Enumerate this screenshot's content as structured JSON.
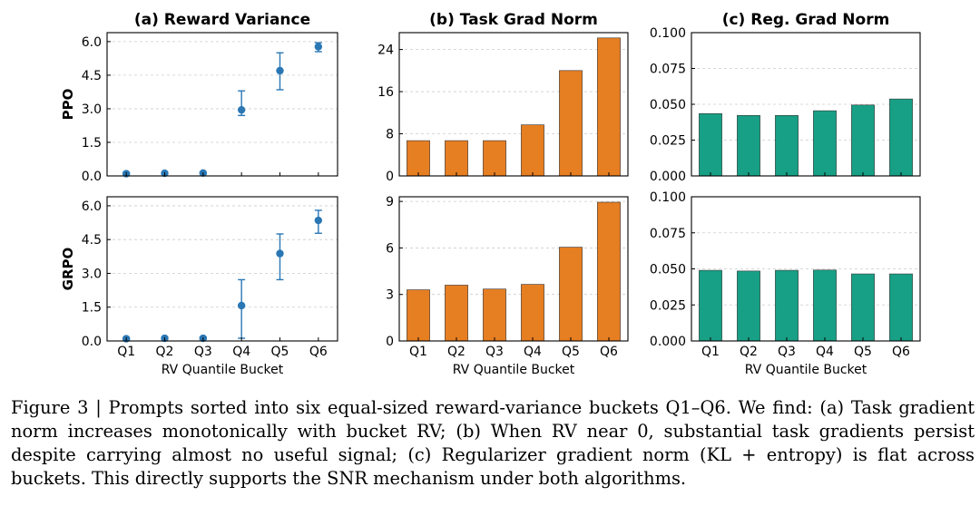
{
  "figure": {
    "row_labels": [
      "PPO",
      "GRPO"
    ],
    "colors": {
      "errorbar": "#2a77b4",
      "task_bar": "#e67e22",
      "reg_bar": "#17a085",
      "grid": "#cccccc"
    }
  },
  "chart_data": [
    {
      "type": "scatter",
      "title": "(a) Reward Variance",
      "row": "PPO",
      "xlabel": "",
      "ylabel": "PPO",
      "categories": [
        "Q1",
        "Q2",
        "Q3",
        "Q4",
        "Q5",
        "Q6"
      ],
      "values": [
        0.1,
        0.12,
        0.13,
        2.95,
        4.7,
        5.77
      ],
      "err_low": [
        0.05,
        0.08,
        0.08,
        2.7,
        3.85,
        5.55
      ],
      "err_high": [
        0.15,
        0.16,
        0.18,
        3.8,
        5.5,
        5.95
      ],
      "ylim": [
        0,
        6.4
      ],
      "yticks": [
        0.0,
        1.5,
        3.0,
        4.5,
        6.0
      ],
      "ytick_labels": [
        "0.0",
        "1.5",
        "3.0",
        "4.5",
        "6.0"
      ],
      "grid": true
    },
    {
      "type": "bar",
      "title": "(b) Task Grad Norm",
      "row": "PPO",
      "xlabel": "",
      "categories": [
        "Q1",
        "Q2",
        "Q3",
        "Q4",
        "Q5",
        "Q6"
      ],
      "values": [
        6.7,
        6.7,
        6.7,
        9.7,
        20.0,
        26.2
      ],
      "ylim": [
        0,
        27.2
      ],
      "yticks": [
        0,
        8,
        16,
        24
      ],
      "ytick_labels": [
        "0",
        "8",
        "16",
        "24"
      ],
      "grid": true
    },
    {
      "type": "bar",
      "title": "(c) Reg. Grad Norm",
      "row": "PPO",
      "xlabel": "",
      "categories": [
        "Q1",
        "Q2",
        "Q3",
        "Q4",
        "Q5",
        "Q6"
      ],
      "values": [
        0.0435,
        0.0422,
        0.0422,
        0.0455,
        0.0495,
        0.0537
      ],
      "ylim": [
        0,
        0.1
      ],
      "yticks": [
        0.0,
        0.025,
        0.05,
        0.075,
        0.1
      ],
      "ytick_labels": [
        "0.000",
        "0.025",
        "0.050",
        "0.075",
        "0.100"
      ],
      "grid": true
    },
    {
      "type": "scatter",
      "title": "",
      "row": "GRPO",
      "xlabel": "RV Quantile Bucket",
      "ylabel": "GRPO",
      "categories": [
        "Q1",
        "Q2",
        "Q3",
        "Q4",
        "Q5",
        "Q6"
      ],
      "values": [
        0.1,
        0.12,
        0.12,
        1.57,
        3.88,
        5.35
      ],
      "err_low": [
        0.05,
        0.07,
        0.07,
        0.12,
        2.72,
        4.78
      ],
      "err_high": [
        0.15,
        0.16,
        0.17,
        2.72,
        4.75,
        5.8
      ],
      "ylim": [
        0,
        6.4
      ],
      "yticks": [
        0.0,
        1.5,
        3.0,
        4.5,
        6.0
      ],
      "ytick_labels": [
        "0.0",
        "1.5",
        "3.0",
        "4.5",
        "6.0"
      ],
      "grid": true
    },
    {
      "type": "bar",
      "title": "",
      "row": "GRPO",
      "xlabel": "RV Quantile Bucket",
      "categories": [
        "Q1",
        "Q2",
        "Q3",
        "Q4",
        "Q5",
        "Q6"
      ],
      "values": [
        3.3,
        3.6,
        3.35,
        3.65,
        6.05,
        8.95
      ],
      "ylim": [
        0,
        9.3
      ],
      "yticks": [
        0,
        3,
        6,
        9
      ],
      "ytick_labels": [
        "0",
        "3",
        "6",
        "9"
      ],
      "grid": true
    },
    {
      "type": "bar",
      "title": "",
      "row": "GRPO",
      "xlabel": "RV Quantile Bucket",
      "categories": [
        "Q1",
        "Q2",
        "Q3",
        "Q4",
        "Q5",
        "Q6"
      ],
      "values": [
        0.049,
        0.0485,
        0.049,
        0.0492,
        0.0465,
        0.0465
      ],
      "ylim": [
        0,
        0.1
      ],
      "yticks": [
        0.0,
        0.025,
        0.05,
        0.075,
        0.1
      ],
      "ytick_labels": [
        "0.000",
        "0.025",
        "0.050",
        "0.075",
        "0.100"
      ],
      "grid": true
    }
  ],
  "caption": "Figure 3 | Prompts sorted into six equal-sized reward-variance buckets Q1–Q6. We find: (a) Task gradient norm increases monotonically with bucket RV; (b) When RV near 0, substantial task gradients persist despite carrying almost no useful signal; (c) Regularizer gradient norm (KL + entropy) is flat across buckets. This directly supports the SNR mechanism under both algorithms."
}
